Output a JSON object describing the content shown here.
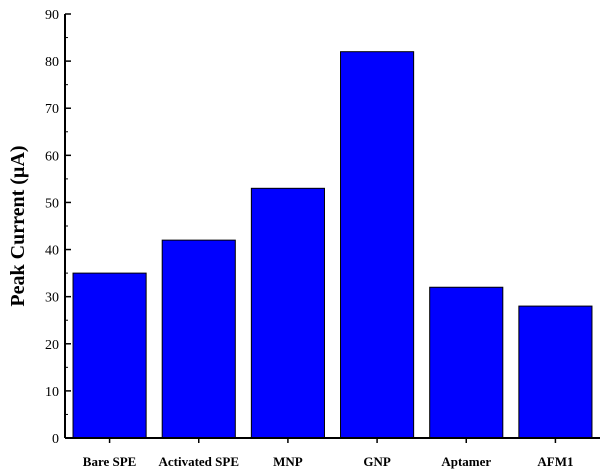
{
  "chart_data": {
    "type": "bar",
    "categories": [
      "Bare SPE",
      "Activated SPE",
      "MNP",
      "GNP",
      "Aptamer",
      "AFM1"
    ],
    "values": [
      35,
      42,
      53,
      82,
      32,
      28
    ],
    "title": "",
    "xlabel": "",
    "ylabel": "Peak Current (µA)",
    "ylim": [
      0,
      90
    ],
    "yticks": [
      0,
      10,
      20,
      30,
      40,
      50,
      60,
      70,
      80,
      90
    ],
    "grid": false,
    "bar_color": "#0000ff",
    "bar_edge_color": "#000000"
  }
}
